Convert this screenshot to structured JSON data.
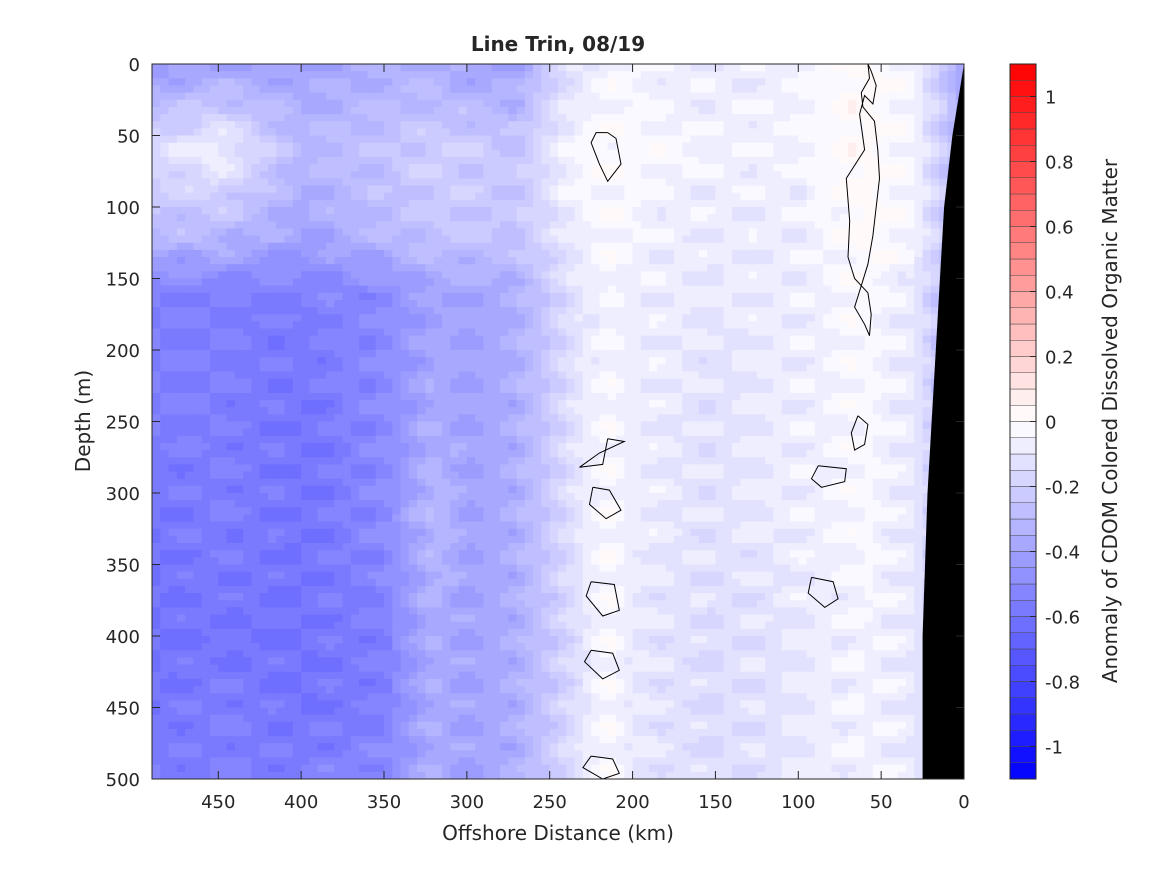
{
  "chart_data": {
    "type": "heatmap",
    "title": "Line Trin, 08/19",
    "xlabel": "Offshore Distance (km)",
    "ylabel": "Depth (m)",
    "colorbar_label": "Anomaly of CDOM Colored Dissolved Organic Matter",
    "xlim": [
      490,
      0
    ],
    "ylim": [
      500,
      0
    ],
    "x_ticks": [
      450,
      400,
      350,
      300,
      250,
      200,
      150,
      100,
      50,
      0
    ],
    "y_ticks": [
      0,
      50,
      100,
      150,
      200,
      250,
      300,
      350,
      400,
      450,
      500
    ],
    "colorbar_range": [
      -1.1,
      1.1
    ],
    "colorbar_ticks": [
      1,
      0.8,
      0.6,
      0.4,
      0.2,
      0,
      -0.2,
      -0.4,
      -0.6,
      -0.8,
      -1
    ],
    "colorbar_tick_labels": [
      "1",
      "0.8",
      "0.6",
      "0.4",
      "0.2",
      "0",
      "-0.2",
      "-0.4",
      "-0.6",
      "-0.8",
      "-1"
    ],
    "colorbar_levels": 44,
    "colormap": {
      "negative": "#0000ff",
      "zero": "#ffffff",
      "positive": "#ff0000"
    },
    "contour_level": 0,
    "bathymetry_color": "#000000",
    "grid": false,
    "field": {
      "x": [
        490,
        450,
        400,
        350,
        320,
        300,
        270,
        240,
        215,
        200,
        150,
        100,
        60,
        30,
        0
      ],
      "depth": [
        0,
        60,
        120,
        160,
        250,
        320,
        400,
        450,
        500
      ],
      "values": [
        [
          -0.45,
          -0.4,
          -0.4,
          -0.35,
          -0.35,
          -0.4,
          -0.4,
          -0.15,
          -0.05,
          -0.05,
          -0.1,
          -0.05,
          0.02,
          -0.05,
          -0.4
        ],
        [
          -0.15,
          -0.05,
          -0.3,
          -0.25,
          -0.2,
          -0.2,
          -0.25,
          -0.05,
          0.0,
          -0.03,
          -0.05,
          -0.05,
          0.03,
          -0.05,
          -0.35
        ],
        [
          -0.3,
          -0.3,
          -0.4,
          -0.3,
          -0.25,
          -0.25,
          -0.25,
          -0.1,
          -0.02,
          -0.05,
          -0.1,
          -0.08,
          0.02,
          -0.05,
          -0.35
        ],
        [
          -0.55,
          -0.55,
          -0.55,
          -0.5,
          -0.4,
          -0.4,
          -0.35,
          -0.15,
          -0.05,
          -0.08,
          -0.1,
          -0.08,
          -0.02,
          -0.1,
          -0.4
        ],
        [
          -0.55,
          -0.55,
          -0.6,
          -0.5,
          -0.35,
          -0.4,
          -0.35,
          -0.15,
          -0.03,
          -0.08,
          -0.12,
          -0.08,
          -0.03,
          -0.1,
          -0.4
        ],
        [
          -0.6,
          -0.55,
          -0.6,
          -0.5,
          -0.3,
          -0.4,
          -0.35,
          -0.15,
          -0.02,
          -0.08,
          -0.12,
          -0.08,
          -0.03,
          -0.1,
          -0.4
        ],
        [
          -0.6,
          -0.6,
          -0.6,
          -0.55,
          -0.35,
          -0.4,
          -0.35,
          -0.18,
          -0.02,
          -0.1,
          -0.15,
          -0.1,
          -0.05,
          -0.1,
          -0.4
        ],
        [
          -0.6,
          -0.55,
          -0.6,
          -0.55,
          -0.35,
          -0.4,
          -0.35,
          -0.18,
          -0.02,
          -0.1,
          -0.15,
          -0.1,
          -0.05,
          -0.1,
          -0.4
        ],
        [
          -0.55,
          -0.55,
          -0.55,
          -0.5,
          -0.35,
          -0.4,
          -0.35,
          -0.15,
          -0.02,
          -0.1,
          -0.15,
          -0.1,
          -0.05,
          -0.1,
          -0.4
        ]
      ]
    },
    "bathymetry": {
      "x": [
        0,
        0,
        7,
        12,
        17,
        22,
        25,
        25,
        0
      ],
      "depth": [
        0,
        0,
        50,
        100,
        200,
        300,
        400,
        500,
        500
      ]
    },
    "zero_contours": [
      {
        "x": [
          58,
          57,
          62,
          61,
          54,
          52,
          51,
          53,
          55,
          58,
          62,
          66,
          60,
          57,
          56,
          58,
          66,
          70,
          69,
          71,
          60,
          63,
          60,
          55,
          53,
          56,
          58
        ],
        "depth": [
          0,
          10,
          20,
          30,
          40,
          60,
          80,
          100,
          120,
          140,
          155,
          170,
          182,
          190,
          175,
          160,
          150,
          135,
          110,
          80,
          60,
          35,
          22,
          28,
          15,
          5,
          0
        ]
      },
      {
        "x": [
          215,
          210,
          207,
          215,
          220,
          225,
          222,
          215
        ],
        "depth": [
          48,
          52,
          70,
          82,
          70,
          55,
          48,
          48
        ]
      },
      {
        "x": [
          215,
          205,
          220,
          232,
          218,
          215
        ],
        "depth": [
          262,
          264,
          272,
          282,
          280,
          262
        ]
      },
      {
        "x": [
          224,
          214,
          207,
          216,
          226,
          224
        ],
        "depth": [
          296,
          298,
          312,
          318,
          308,
          296
        ]
      },
      {
        "x": [
          225,
          211,
          208,
          218,
          228,
          225
        ],
        "depth": [
          362,
          364,
          382,
          386,
          372,
          362
        ]
      },
      {
        "x": [
          225,
          212,
          208,
          218,
          229,
          225
        ],
        "depth": [
          410,
          412,
          424,
          430,
          418,
          410
        ]
      },
      {
        "x": [
          225,
          212,
          208,
          218,
          230,
          225
        ],
        "depth": [
          484,
          486,
          496,
          500,
          492,
          484
        ]
      },
      {
        "x": [
          92,
          79,
          76,
          84,
          94,
          92
        ],
        "depth": [
          359,
          362,
          374,
          380,
          370,
          359
        ]
      },
      {
        "x": [
          88,
          71,
          72,
          86,
          92,
          88
        ],
        "depth": [
          281,
          283,
          292,
          296,
          290,
          281
        ]
      },
      {
        "x": [
          64,
          58,
          60,
          66,
          68,
          64
        ],
        "depth": [
          246,
          252,
          266,
          270,
          258,
          246
        ]
      }
    ]
  }
}
